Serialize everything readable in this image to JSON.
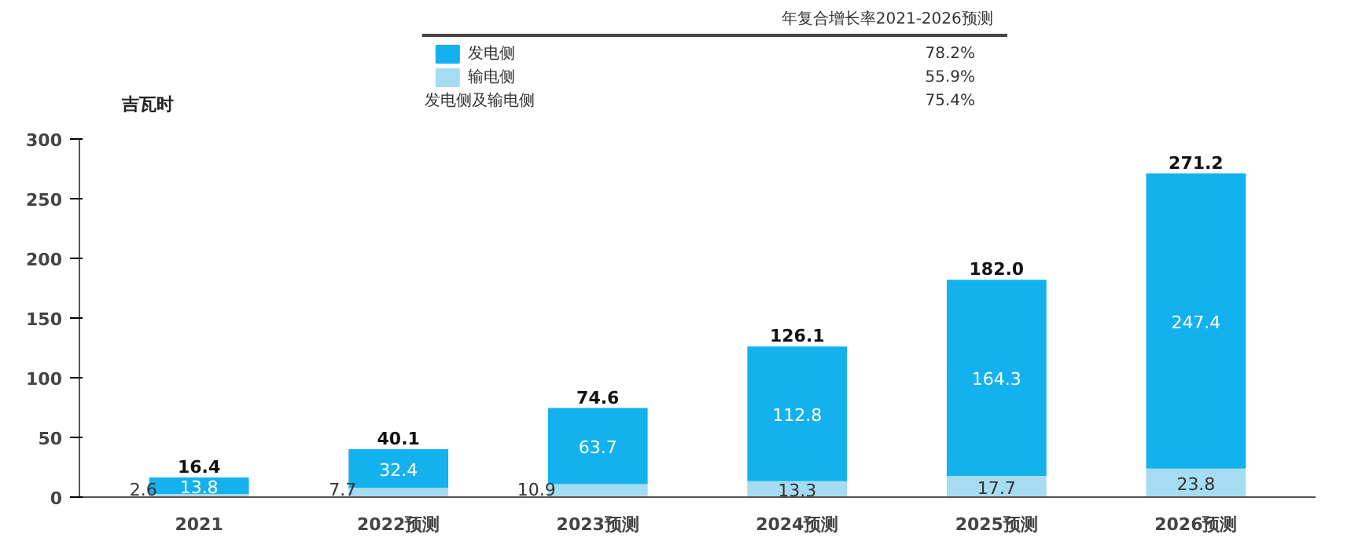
{
  "chart_data": {
    "type": "bar",
    "stacked": true,
    "ylabel": "吉瓦时",
    "legend_title": "年复合增长率2021-2026预测",
    "categories": [
      "2021",
      "2022预测",
      "2023预测",
      "2024预测",
      "2025预测",
      "2026预测"
    ],
    "series": [
      {
        "name": "输电侧",
        "color": "#a6dcf2",
        "values": [
          2.6,
          7.7,
          10.9,
          13.3,
          17.7,
          23.8
        ]
      },
      {
        "name": "发电侧",
        "color": "#14b1ef",
        "values": [
          13.8,
          32.4,
          63.7,
          112.8,
          164.3,
          247.4
        ]
      }
    ],
    "totals": [
      "16.4",
      "40.1",
      "74.6",
      "126.1",
      "182.0",
      "271.2"
    ],
    "data_labels": true,
    "legend": "top",
    "grid": false,
    "ylim": [
      0,
      300
    ],
    "yticks": [
      0,
      50,
      100,
      150,
      200,
      250,
      300
    ],
    "annotations": [
      "78.2%",
      "55.9%",
      "发电侧及输电侧",
      "75.4%"
    ]
  }
}
